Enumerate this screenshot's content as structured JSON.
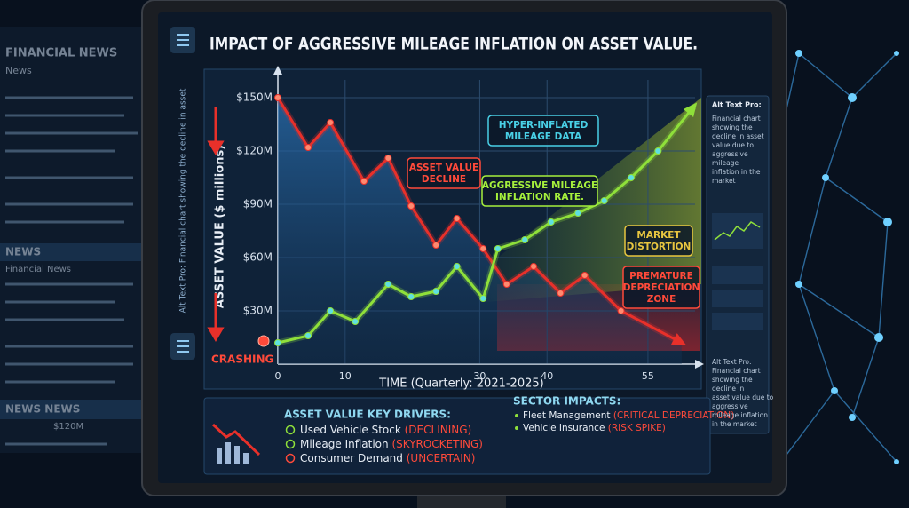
{
  "background_news": {
    "title": "FINANCIAL NEWS",
    "items": [
      "News",
      "NEWS",
      "Financial News",
      "NEWS NEWS",
      "$120M"
    ]
  },
  "side_alt_text": "Alt Text Pro: Financial chart showing the decline in asset",
  "chart_data": {
    "type": "line",
    "title": "IMPACT OF AGGRESSIVE MILEAGE INFLATION ON ASSET VALUE.",
    "y_label": "ASSET VALUE ($ millions)",
    "x_label": "TIME (Quarterly: 2021-2025)",
    "status_label": "CRASHING",
    "xlim": [
      0,
      62
    ],
    "ylim": [
      0,
      160
    ],
    "xticks": [
      0,
      10,
      30,
      40,
      55
    ],
    "yticks": [
      {
        "value": 30,
        "label": "$30M"
      },
      {
        "value": 60,
        "label": "$60M"
      },
      {
        "value": 90,
        "label": "$90M"
      },
      {
        "value": 120,
        "label": "$120M"
      },
      {
        "value": 150,
        "label": "$150M"
      }
    ],
    "grid": true,
    "series": [
      {
        "color": "#e8302a",
        "x": [
          0,
          4.5,
          7.8,
          12.8,
          16.4,
          19.8,
          23.5,
          26.6,
          30.5,
          34,
          38,
          42,
          45.6,
          51,
          60
        ],
        "values": [
          150,
          122,
          136,
          103,
          116,
          89,
          67,
          82,
          65,
          45,
          55,
          40,
          50,
          30,
          12
        ]
      },
      {
        "color": "#8fe03a",
        "x": [
          0,
          4.5,
          7.8,
          11.5,
          16.4,
          19.8,
          23.5,
          26.6,
          30.5,
          32.7,
          36.7,
          40.6,
          44.6,
          48.5,
          52.5,
          56.5,
          61.8
        ],
        "values": [
          12,
          16,
          30,
          24,
          45,
          38,
          41,
          55,
          37,
          65,
          70,
          80,
          85,
          92,
          105,
          120,
          145
        ]
      }
    ],
    "annotations": [
      {
        "lines": [
          "HYPER-INFLATED",
          "MILEAGE DATA"
        ],
        "color": "#49d0e6"
      },
      {
        "lines": [
          "ASSET VALUE",
          "DECLINE"
        ],
        "color": "#ff4a3a"
      },
      {
        "lines": [
          "AGGRESSIVE MILEAGE",
          "INFLATION RATE."
        ],
        "color": "#a6f03c"
      },
      {
        "lines": [
          "MARKET",
          "DISTORTION"
        ],
        "color": "#e8c640"
      },
      {
        "lines": [
          "PREMATURE",
          "DEPRECIATION",
          "ZONE"
        ],
        "color": "#ff4a3a"
      }
    ]
  },
  "bottom_panel": {
    "drivers_title": "ASSET VALUE KEY DRIVERS:",
    "drivers": [
      {
        "label": "Used Vehicle Stock",
        "status": "(DECLINING)"
      },
      {
        "label": "Mileage Inflation",
        "status": "(SKYROCKETING)"
      },
      {
        "label": "Consumer Demand",
        "status": "(UNCERTAIN)"
      }
    ],
    "sectors_title": "SECTOR IMPACTS:",
    "sectors": [
      {
        "label": "Fleet Management",
        "status": "(CRITICAL DEPRECIATION)"
      },
      {
        "label": "Vehicle Insurance",
        "status": "(RISK SPIKE)"
      }
    ]
  },
  "right_panel": {
    "header": "Alt Text Pro:",
    "text_lines": [
      "Financial chart",
      "showing the",
      "decline in asset",
      "value due to",
      "aggressive",
      "mileage",
      "inflation in the",
      "market"
    ],
    "footer_lines": [
      "Alt Text Pro:",
      "Financial chart",
      "showing the",
      "decline in",
      "asset value due to",
      "aggressive",
      "mileage inflation",
      "in the market"
    ]
  }
}
